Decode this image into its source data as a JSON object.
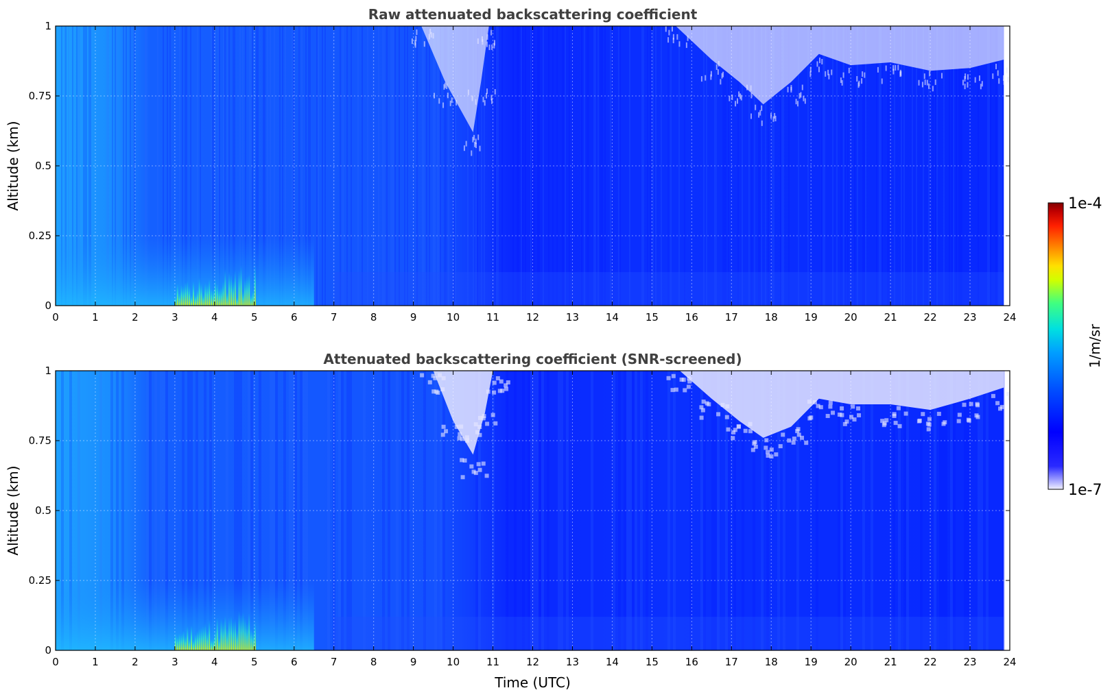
{
  "chart_data": [
    {
      "type": "heatmap",
      "title": "Raw attenuated backscattering coefficient",
      "xlabel": "",
      "ylabel": "Altitude (km)",
      "xlim": [
        0,
        24
      ],
      "ylim": [
        0,
        1
      ],
      "xticks": [
        "0",
        "1",
        "2",
        "3",
        "4",
        "5",
        "6",
        "7",
        "8",
        "9",
        "10",
        "11",
        "12",
        "13",
        "14",
        "15",
        "16",
        "17",
        "18",
        "19",
        "20",
        "21",
        "22",
        "23",
        "24"
      ],
      "yticks": [
        "0",
        "0.25",
        "0.5",
        "0.75",
        "1"
      ],
      "grid": true,
      "screened": false,
      "data_end_time": 23.85,
      "clear_air_top": [
        {
          "x": 9.2,
          "y": 1.0
        },
        {
          "x": 9.8,
          "y": 0.8
        },
        {
          "x": 10.5,
          "y": 0.62
        },
        {
          "x": 10.7,
          "y": 0.8
        },
        {
          "x": 10.9,
          "y": 1.0
        },
        {
          "x": 15.6,
          "y": 1.0
        },
        {
          "x": 16.5,
          "y": 0.88
        },
        {
          "x": 17.2,
          "y": 0.8
        },
        {
          "x": 17.8,
          "y": 0.72
        },
        {
          "x": 18.5,
          "y": 0.8
        },
        {
          "x": 19.2,
          "y": 0.9
        },
        {
          "x": 20.0,
          "y": 0.86
        },
        {
          "x": 21.0,
          "y": 0.87
        },
        {
          "x": 22.0,
          "y": 0.84
        },
        {
          "x": 23.0,
          "y": 0.85
        },
        {
          "x": 23.85,
          "y": 0.88
        }
      ],
      "aerosol_layer": {
        "x_start": 0,
        "x_end": 6.5,
        "top": 0.25,
        "peak_x": [
          3,
          5
        ],
        "peak_top": 0.16
      }
    },
    {
      "type": "heatmap",
      "title": "Attenuated backscattering coefficient (SNR-screened)",
      "xlabel": "Time (UTC)",
      "ylabel": "Altitude (km)",
      "xlim": [
        0,
        24
      ],
      "ylim": [
        0,
        1
      ],
      "xticks": [
        "0",
        "1",
        "2",
        "3",
        "4",
        "5",
        "6",
        "7",
        "8",
        "9",
        "10",
        "11",
        "12",
        "13",
        "14",
        "15",
        "16",
        "17",
        "18",
        "19",
        "20",
        "21",
        "22",
        "23",
        "24"
      ],
      "yticks": [
        "0",
        "0.25",
        "0.5",
        "0.75",
        "1"
      ],
      "grid": true,
      "screened": true,
      "data_end_time": 23.85,
      "clear_air_top": [
        {
          "x": 9.5,
          "y": 1.0
        },
        {
          "x": 10.0,
          "y": 0.82
        },
        {
          "x": 10.5,
          "y": 0.7
        },
        {
          "x": 10.8,
          "y": 0.85
        },
        {
          "x": 11.0,
          "y": 1.0
        },
        {
          "x": 15.7,
          "y": 1.0
        },
        {
          "x": 16.5,
          "y": 0.9
        },
        {
          "x": 17.2,
          "y": 0.82
        },
        {
          "x": 17.8,
          "y": 0.76
        },
        {
          "x": 18.5,
          "y": 0.8
        },
        {
          "x": 19.2,
          "y": 0.9
        },
        {
          "x": 20.0,
          "y": 0.88
        },
        {
          "x": 21.0,
          "y": 0.88
        },
        {
          "x": 22.0,
          "y": 0.86
        },
        {
          "x": 23.0,
          "y": 0.9
        },
        {
          "x": 23.85,
          "y": 0.94
        }
      ],
      "aerosol_layer": {
        "x_start": 0,
        "x_end": 6.5,
        "top": 0.25,
        "peak_x": [
          3,
          5
        ],
        "peak_top": 0.16
      }
    }
  ],
  "colorbar": {
    "label": "1/m/sr",
    "max_label": "1e-4",
    "min_label": "1e-7",
    "scale": "log",
    "range": [
      1e-07,
      0.0001
    ],
    "colormap": [
      "#f0f0ff",
      "#2a2aff",
      "#0000ff",
      "#0050ff",
      "#00a0ff",
      "#00e0e0",
      "#40ff80",
      "#d0ff00",
      "#ffe000",
      "#ff8000",
      "#ff2000",
      "#c00000",
      "#800000"
    ]
  },
  "colors": {
    "background_low": "#0a1cff",
    "background_mid": "#1a4cff",
    "background_high": "#1890ff",
    "clear_air": "#e8e8ff",
    "aerosol_peak": "#ffe000"
  }
}
